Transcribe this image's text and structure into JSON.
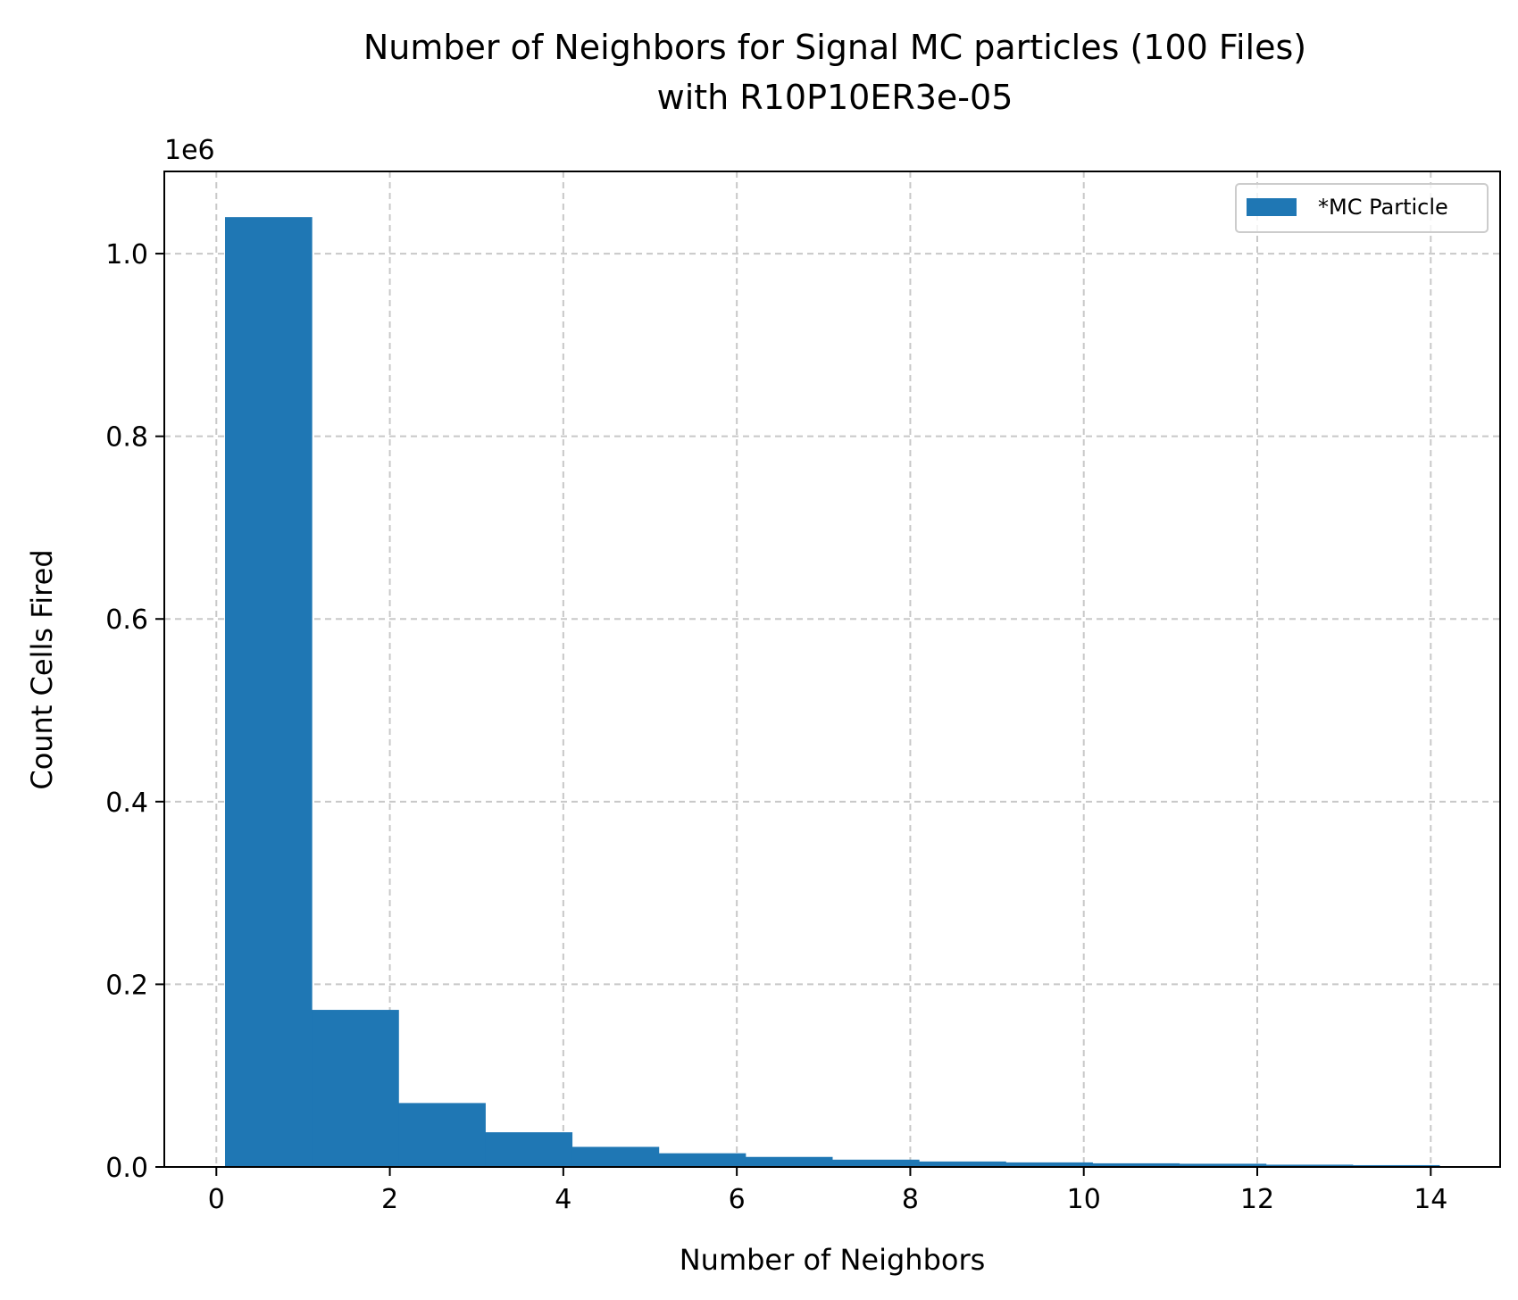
{
  "chart_data": {
    "type": "bar",
    "title_line1": "Number of Neighbors for Signal MC particles (100 Files)",
    "title_line2": "with R10P10ER3e-05",
    "xlabel": "Number of Neighbors",
    "ylabel": "Count Cells Fired",
    "y_offset_text": "1e6",
    "x_ticks": [
      "0",
      "2",
      "4",
      "6",
      "8",
      "10",
      "12",
      "14"
    ],
    "y_ticks": [
      "0.0",
      "0.2",
      "0.4",
      "0.6",
      "0.8",
      "1.0"
    ],
    "xlim": [
      -0.6,
      14.8
    ],
    "ylim": [
      0,
      1.09
    ],
    "y_scale_multiplier": 1000000,
    "grid": true,
    "legend_position": "top-right",
    "series": [
      {
        "name": "*MC Particle",
        "color": "#1f77b4",
        "bins": [
          {
            "x_start": 0.1,
            "x_end": 1.1,
            "value": 1.04
          },
          {
            "x_start": 1.1,
            "x_end": 2.1,
            "value": 0.172
          },
          {
            "x_start": 2.1,
            "x_end": 3.1,
            "value": 0.07
          },
          {
            "x_start": 3.1,
            "x_end": 4.1,
            "value": 0.038
          },
          {
            "x_start": 4.1,
            "x_end": 5.1,
            "value": 0.022
          },
          {
            "x_start": 5.1,
            "x_end": 6.1,
            "value": 0.015
          },
          {
            "x_start": 6.1,
            "x_end": 7.1,
            "value": 0.011
          },
          {
            "x_start": 7.1,
            "x_end": 8.1,
            "value": 0.008
          },
          {
            "x_start": 8.1,
            "x_end": 9.1,
            "value": 0.006
          },
          {
            "x_start": 9.1,
            "x_end": 10.1,
            "value": 0.005
          },
          {
            "x_start": 10.1,
            "x_end": 11.1,
            "value": 0.004
          },
          {
            "x_start": 11.1,
            "x_end": 12.1,
            "value": 0.0035
          },
          {
            "x_start": 12.1,
            "x_end": 13.1,
            "value": 0.0025
          },
          {
            "x_start": 13.1,
            "x_end": 14.1,
            "value": 0.002
          }
        ]
      }
    ]
  }
}
